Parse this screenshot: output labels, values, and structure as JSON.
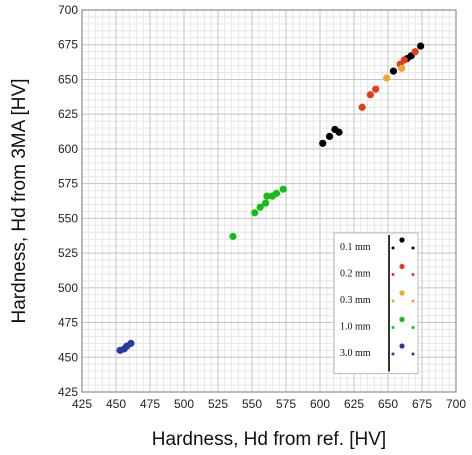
{
  "chart_data": {
    "type": "scatter",
    "title": "",
    "xlabel": "Hardness, Hd from ref. [HV]",
    "ylabel": "Hardness, Hd from 3MA [HV]",
    "xlim": [
      425,
      700
    ],
    "ylim": [
      425,
      700
    ],
    "xticks": [
      425,
      450,
      475,
      500,
      525,
      550,
      575,
      600,
      625,
      650,
      675,
      700
    ],
    "yticks": [
      425,
      450,
      475,
      500,
      525,
      550,
      575,
      600,
      625,
      650,
      675,
      700
    ],
    "minor_grid_step": 5,
    "grid": true,
    "legend_position": "lower-right",
    "series": [
      {
        "name": "0.1 mm",
        "color": "#000000",
        "points": [
          [
            602,
            604
          ],
          [
            607,
            609
          ],
          [
            611,
            614
          ],
          [
            614,
            612
          ],
          [
            654,
            656
          ],
          [
            664,
            665
          ],
          [
            667,
            667
          ],
          [
            674,
            674
          ]
        ]
      },
      {
        "name": "0.2 mm",
        "color": "#e8391b",
        "points": [
          [
            631,
            630
          ],
          [
            637,
            639
          ],
          [
            641,
            643
          ],
          [
            659,
            661
          ],
          [
            662,
            664
          ],
          [
            670,
            670
          ]
        ]
      },
      {
        "name": "0.3 mm",
        "color": "#f5a623",
        "points": [
          [
            649,
            651
          ],
          [
            660,
            658
          ]
        ]
      },
      {
        "name": "1.0 mm",
        "color": "#12c012",
        "points": [
          [
            536,
            537
          ],
          [
            552,
            554
          ],
          [
            556,
            558
          ],
          [
            560,
            561
          ],
          [
            561,
            566
          ],
          [
            565,
            566
          ],
          [
            568,
            568
          ],
          [
            573,
            571
          ]
        ]
      },
      {
        "name": "3.0 mm",
        "color": "#2a3aa0",
        "points": [
          [
            453,
            455
          ],
          [
            456,
            456
          ],
          [
            458,
            458
          ],
          [
            461,
            460
          ]
        ]
      }
    ]
  }
}
